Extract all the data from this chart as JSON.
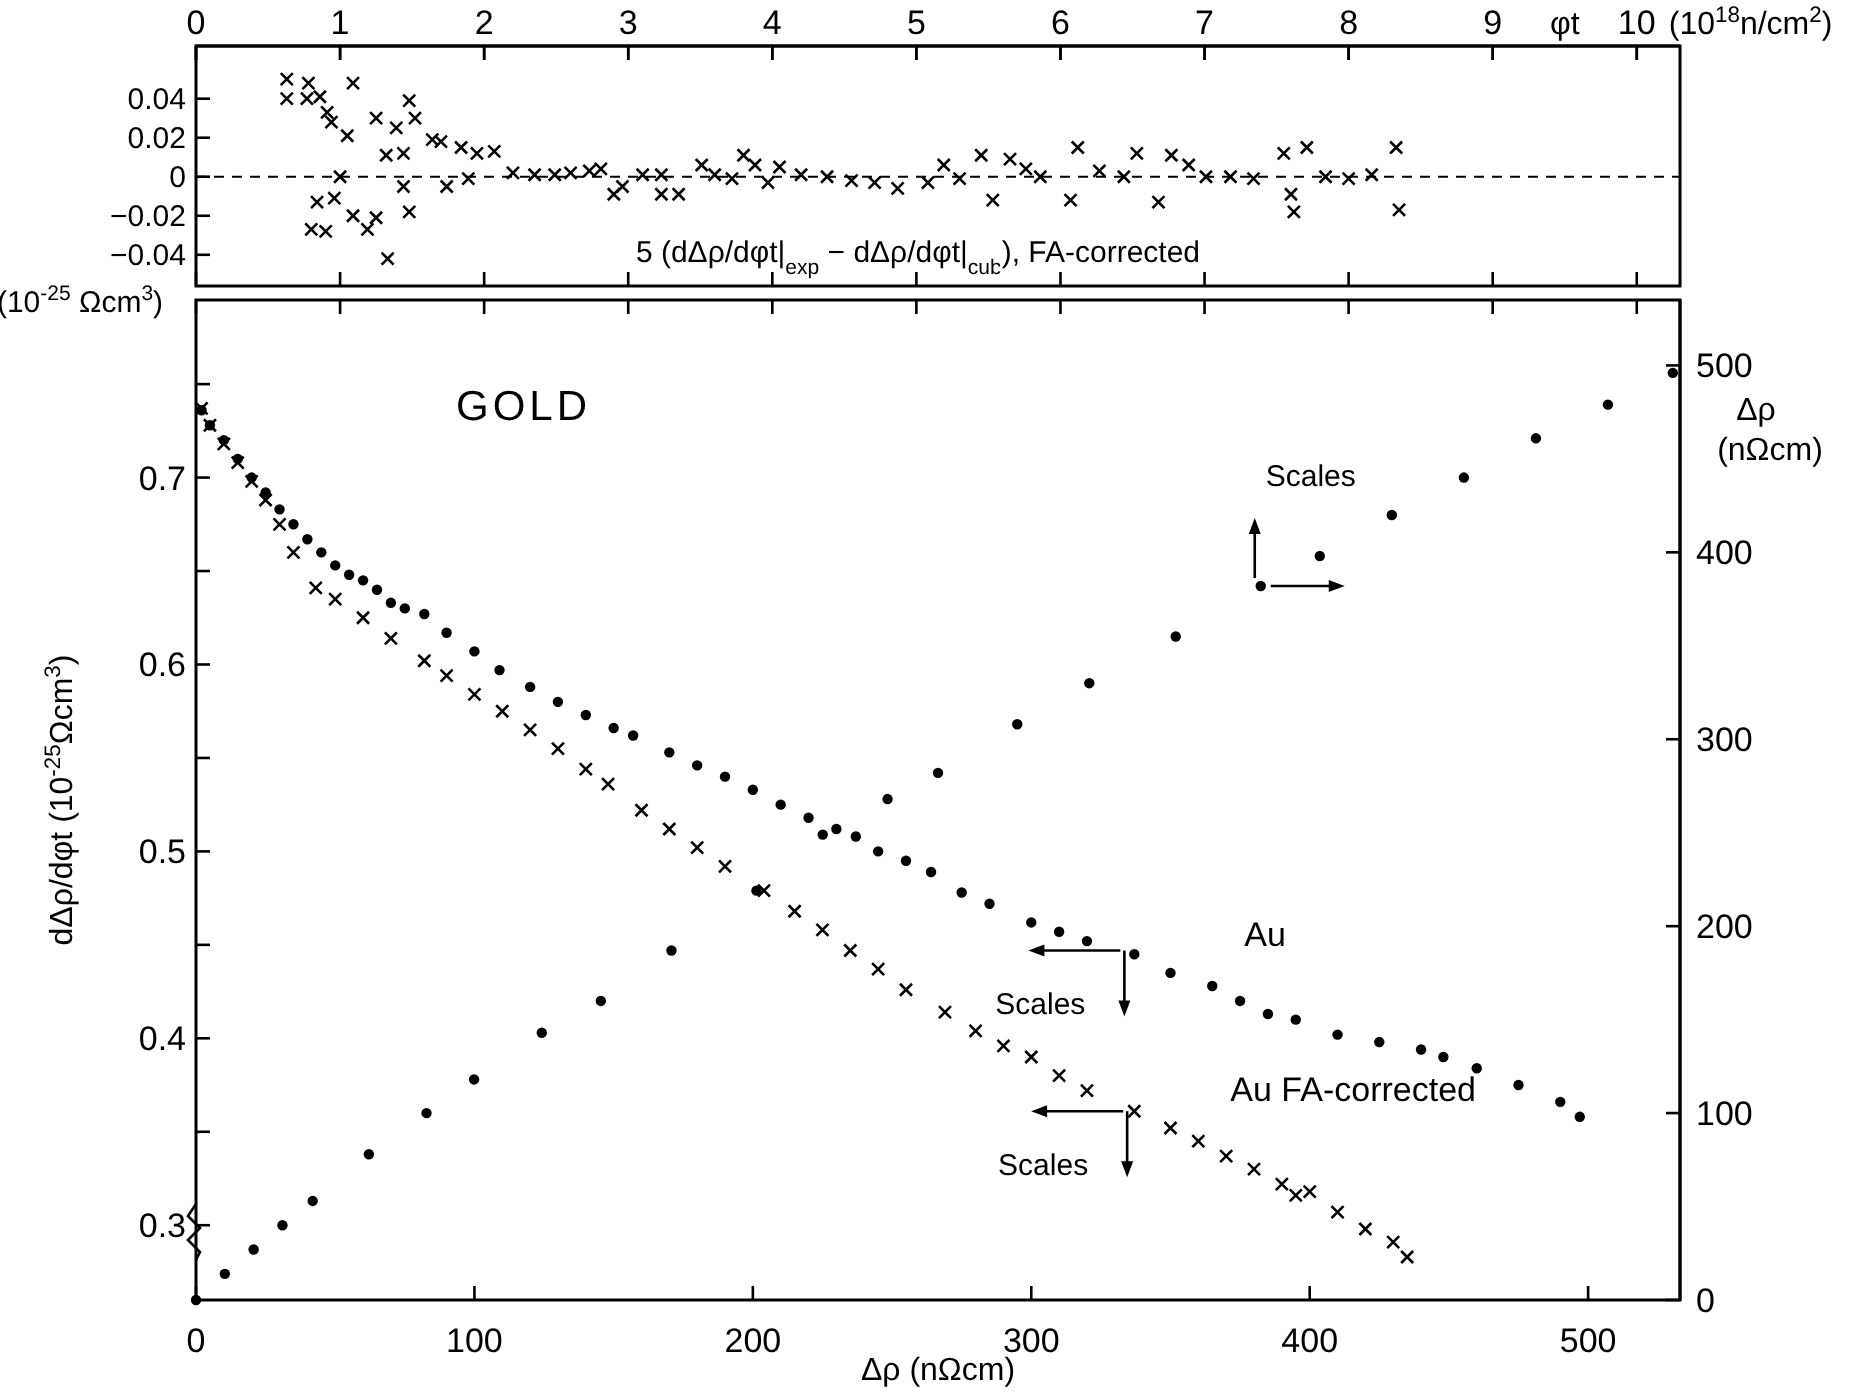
{
  "chart_data": [
    {
      "type": "scatter",
      "ylabel": "5 (dΔρ/dφt|$_{exp}$ − dΔρ/dφt|$_{cub}$), FA-corrected",
      "xlim": [
        0,
        10.3
      ],
      "xticks": [
        0,
        1,
        2,
        3,
        4,
        5,
        6,
        7,
        8,
        9,
        10
      ],
      "ylim": [
        -0.056,
        0.067
      ],
      "yticks": [
        0.04,
        0.02,
        0,
        -0.02,
        -0.04
      ],
      "tick_labels": "y",
      "marker": "cross",
      "ref_lines": [
        {
          "axis": "y",
          "value": 0,
          "line_style": "dashed",
          "color": "#000000"
        }
      ],
      "series": [
        {
          "color": "#000000",
          "x": [
            0.63,
            0.63,
            0.77,
            0.78,
            0.86,
            0.91,
            0.94,
            1.09,
            1.05,
            1.0,
            0.84,
            0.8,
            0.9,
            0.96,
            1.09,
            1.19,
            1.33,
            1.25,
            1.25,
            1.39,
            1.48,
            1.52,
            1.44,
            1.32,
            1.48,
            1.44,
            1.64,
            1.7,
            1.74,
            1.84,
            1.95,
            2.07,
            1.89,
            2.2,
            2.35,
            2.49,
            2.6,
            2.73,
            2.81,
            2.9,
            2.96,
            3.1,
            3.23,
            3.23,
            3.35,
            3.51,
            3.6,
            3.72,
            3.8,
            3.88,
            4.05,
            3.97,
            4.2,
            4.38,
            4.55,
            4.71,
            4.87,
            5.08,
            5.19,
            5.3,
            5.45,
            5.53,
            5.65,
            5.76,
            5.86,
            6.07,
            6.12,
            6.27,
            6.44,
            6.53,
            6.68,
            6.77,
            6.89,
            7.01,
            7.18,
            7.34,
            7.55,
            7.6,
            7.62,
            7.71,
            7.84,
            8.0,
            8.16,
            8.33,
            8.35
          ],
          "values": [
            0.05,
            0.04,
            0.04,
            0.048,
            0.041,
            0.033,
            0.028,
            0.048,
            0.021,
            0,
            -0.013,
            -0.027,
            -0.028,
            -0.011,
            -0.02,
            -0.027,
            -0.042,
            -0.021,
            0.03,
            0.025,
            0.039,
            0.03,
            0.012,
            0.011,
            -0.018,
            -0.005,
            0.019,
            0.018,
            -0.005,
            0.015,
            0.012,
            0.013,
            -0.001,
            0.002,
            0.001,
            0.001,
            0.002,
            0.003,
            0.004,
            -0.009,
            -0.005,
            0.001,
            0.001,
            -0.009,
            -0.009,
            0.006,
            0.001,
            -0.001,
            0.011,
            0.006,
            0.005,
            -0.003,
            0.001,
            0,
            -0.002,
            -0.003,
            -0.006,
            -0.003,
            0.006,
            -0.001,
            0.011,
            -0.012,
            0.009,
            0.004,
            0,
            -0.012,
            0.015,
            0.003,
            0,
            0.012,
            -0.013,
            0.011,
            0.006,
            0,
            0,
            -0.001,
            0.012,
            -0.009,
            -0.018,
            0.015,
            0,
            -0.001,
            0.001,
            0.015,
            -0.017
          ]
        }
      ]
    },
    {
      "type": "scatter",
      "title": "GOLD",
      "xlabel": "Δρ (nΩcm)",
      "ylabel": "dΔρ/dφt (10$^{-25}$Ωcm$^{3}$)",
      "xlim": [
        0,
        533
      ],
      "xticks": [
        0,
        100,
        200,
        300,
        400,
        500
      ],
      "ylim": [
        0.26,
        0.795
      ],
      "yticks": [
        0.3,
        {
          "value": 0.35,
          "label": null
        },
        0.4,
        {
          "value": 0.45,
          "label": null
        },
        0.5,
        {
          "value": 0.55,
          "label": null
        },
        0.6,
        {
          "value": 0.65,
          "label": null
        },
        0.7,
        {
          "value": 0.75,
          "label": null
        }
      ],
      "annotations": [
        "(10$^{-25}$ Ωcm$^{3}$)",
        {
          "text": "Scales",
          "x": 332,
          "y": 0.447
        },
        {
          "text": "Scales",
          "x": 333,
          "y": 0.361
        }
      ],
      "series": [
        {
          "name": "Au",
          "color": "#000000",
          "marker": "circle",
          "x": [
            2,
            5,
            10,
            15,
            20,
            25,
            30,
            35,
            40,
            45,
            50,
            55,
            60,
            65,
            70,
            75,
            82,
            90,
            100,
            109,
            120,
            130,
            140,
            150,
            157,
            170,
            180,
            190,
            200,
            210,
            220,
            230,
            237,
            245,
            255,
            264,
            275,
            285,
            300,
            310,
            320,
            337,
            350,
            365,
            375,
            385,
            395,
            410,
            425,
            440,
            448,
            460,
            475,
            490,
            497
          ],
          "values": [
            0.736,
            0.728,
            0.72,
            0.71,
            0.7,
            0.692,
            0.683,
            0.675,
            0.667,
            0.66,
            0.653,
            0.648,
            0.645,
            0.64,
            0.633,
            0.63,
            0.627,
            0.617,
            0.607,
            0.597,
            0.588,
            0.58,
            0.573,
            0.566,
            0.562,
            0.553,
            0.546,
            0.54,
            0.533,
            0.525,
            0.518,
            0.512,
            0.508,
            0.5,
            0.495,
            0.489,
            0.478,
            0.472,
            0.462,
            0.457,
            0.452,
            0.445,
            0.435,
            0.428,
            0.42,
            0.413,
            0.41,
            0.402,
            0.398,
            0.394,
            0.39,
            0.384,
            0.375,
            0.366,
            0.358
          ]
        },
        {
          "name": "Au FA-corrected",
          "color": "#000000",
          "marker": "cross",
          "x": [
            2,
            5,
            10,
            15,
            20,
            25,
            30,
            35,
            43,
            50,
            60,
            70,
            82,
            90,
            100,
            110,
            120,
            130,
            140,
            148,
            160,
            170,
            180,
            190,
            204,
            215,
            225,
            235,
            245,
            255,
            269,
            280,
            290,
            300,
            310,
            320,
            337,
            350,
            360,
            370,
            380,
            390,
            395,
            400,
            410,
            420,
            430,
            435
          ],
          "values": [
            0.737,
            0.728,
            0.718,
            0.708,
            0.698,
            0.688,
            0.675,
            0.66,
            0.641,
            0.635,
            0.625,
            0.614,
            0.602,
            0.594,
            0.584,
            0.575,
            0.565,
            0.555,
            0.544,
            0.536,
            0.522,
            0.512,
            0.502,
            0.492,
            0.479,
            0.468,
            0.458,
            0.447,
            0.437,
            0.426,
            0.414,
            0.404,
            0.396,
            0.39,
            0.38,
            0.372,
            0.361,
            0.352,
            0.345,
            0.337,
            0.33,
            0.322,
            0.316,
            0.318,
            0.307,
            0.298,
            0.291,
            0.283
          ]
        }
      ]
    },
    {
      "type": "scatter",
      "xlabel": "φt (10$^{18}$n/cm$^{2}$)",
      "ylabel": "Δρ (nΩcm)",
      "xlim": [
        0,
        10.3
      ],
      "xticks": [
        0,
        1,
        2,
        3,
        4,
        5,
        6,
        7,
        8,
        9,
        10
      ],
      "ylim": [
        0,
        535
      ],
      "yticks": [
        0,
        100,
        200,
        300,
        400,
        500
      ],
      "marker": "circle",
      "annotations": [
        {
          "text": "Scales",
          "x": 7.39,
          "y": 382
        }
      ],
      "series": [
        {
          "color": "#000000",
          "x": [
            0,
            0.2,
            0.4,
            0.6,
            0.81,
            1.2,
            1.6,
            1.93,
            2.4,
            2.81,
            3.3,
            3.89,
            4.35,
            4.8,
            5.15,
            5.7,
            6.2,
            6.8,
            7.39,
            7.8,
            8.3,
            8.8,
            9.3,
            9.8,
            10.25
          ],
          "values": [
            0,
            14,
            27,
            40,
            53,
            78,
            100,
            118,
            143,
            160,
            187,
            219,
            249,
            268,
            282,
            308,
            330,
            355,
            382,
            398,
            420,
            440,
            461,
            479,
            496
          ]
        }
      ]
    }
  ]
}
